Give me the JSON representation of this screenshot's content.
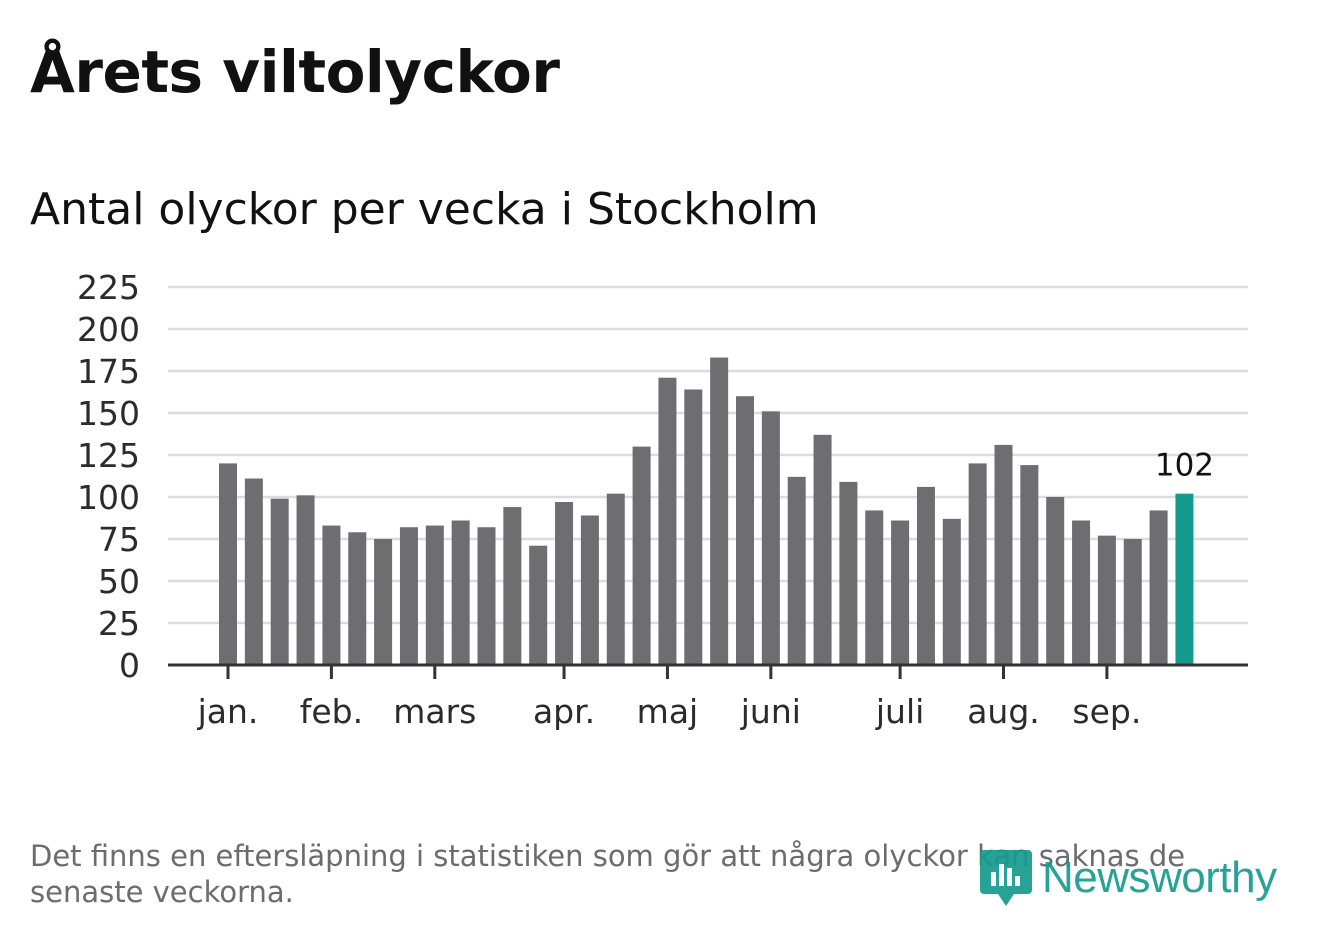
{
  "title": "Årets viltolyckor",
  "subtitle": "Antal olyckor per vecka i Stockholm",
  "footnote": "Det finns en eftersläpning i statistiken som gör att några olyckor kan saknas de senaste veckorna.",
  "logo": {
    "text": "Newsworthy",
    "icon": "newsworthy-logo-icon"
  },
  "colors": {
    "bar": "#6e6d72",
    "highlight": "#159b8e",
    "grid": "#dcdcdc",
    "axis": "#333333"
  },
  "chart_data": {
    "type": "bar",
    "title": "Antal olyckor per vecka i Stockholm",
    "xlabel": "",
    "ylabel": "",
    "ylim": [
      0,
      225
    ],
    "yticks": [
      0,
      25,
      50,
      75,
      100,
      125,
      150,
      175,
      200,
      225
    ],
    "values": [
      120,
      111,
      99,
      101,
      83,
      79,
      75,
      82,
      83,
      86,
      82,
      94,
      71,
      97,
      89,
      102,
      130,
      171,
      164,
      183,
      160,
      151,
      112,
      137,
      109,
      92,
      86,
      106,
      87,
      120,
      131,
      119,
      100,
      86,
      77,
      75,
      92,
      102
    ],
    "highlight_index": 37,
    "highlight_label": "102",
    "months": [
      {
        "label": "jan.",
        "week_index": 0
      },
      {
        "label": "feb.",
        "week_index": 4
      },
      {
        "label": "mars",
        "week_index": 8
      },
      {
        "label": "apr.",
        "week_index": 13
      },
      {
        "label": "maj",
        "week_index": 17
      },
      {
        "label": "juni",
        "week_index": 21
      },
      {
        "label": "juli",
        "week_index": 26
      },
      {
        "label": "aug.",
        "week_index": 30
      },
      {
        "label": "sep.",
        "week_index": 34
      }
    ]
  }
}
